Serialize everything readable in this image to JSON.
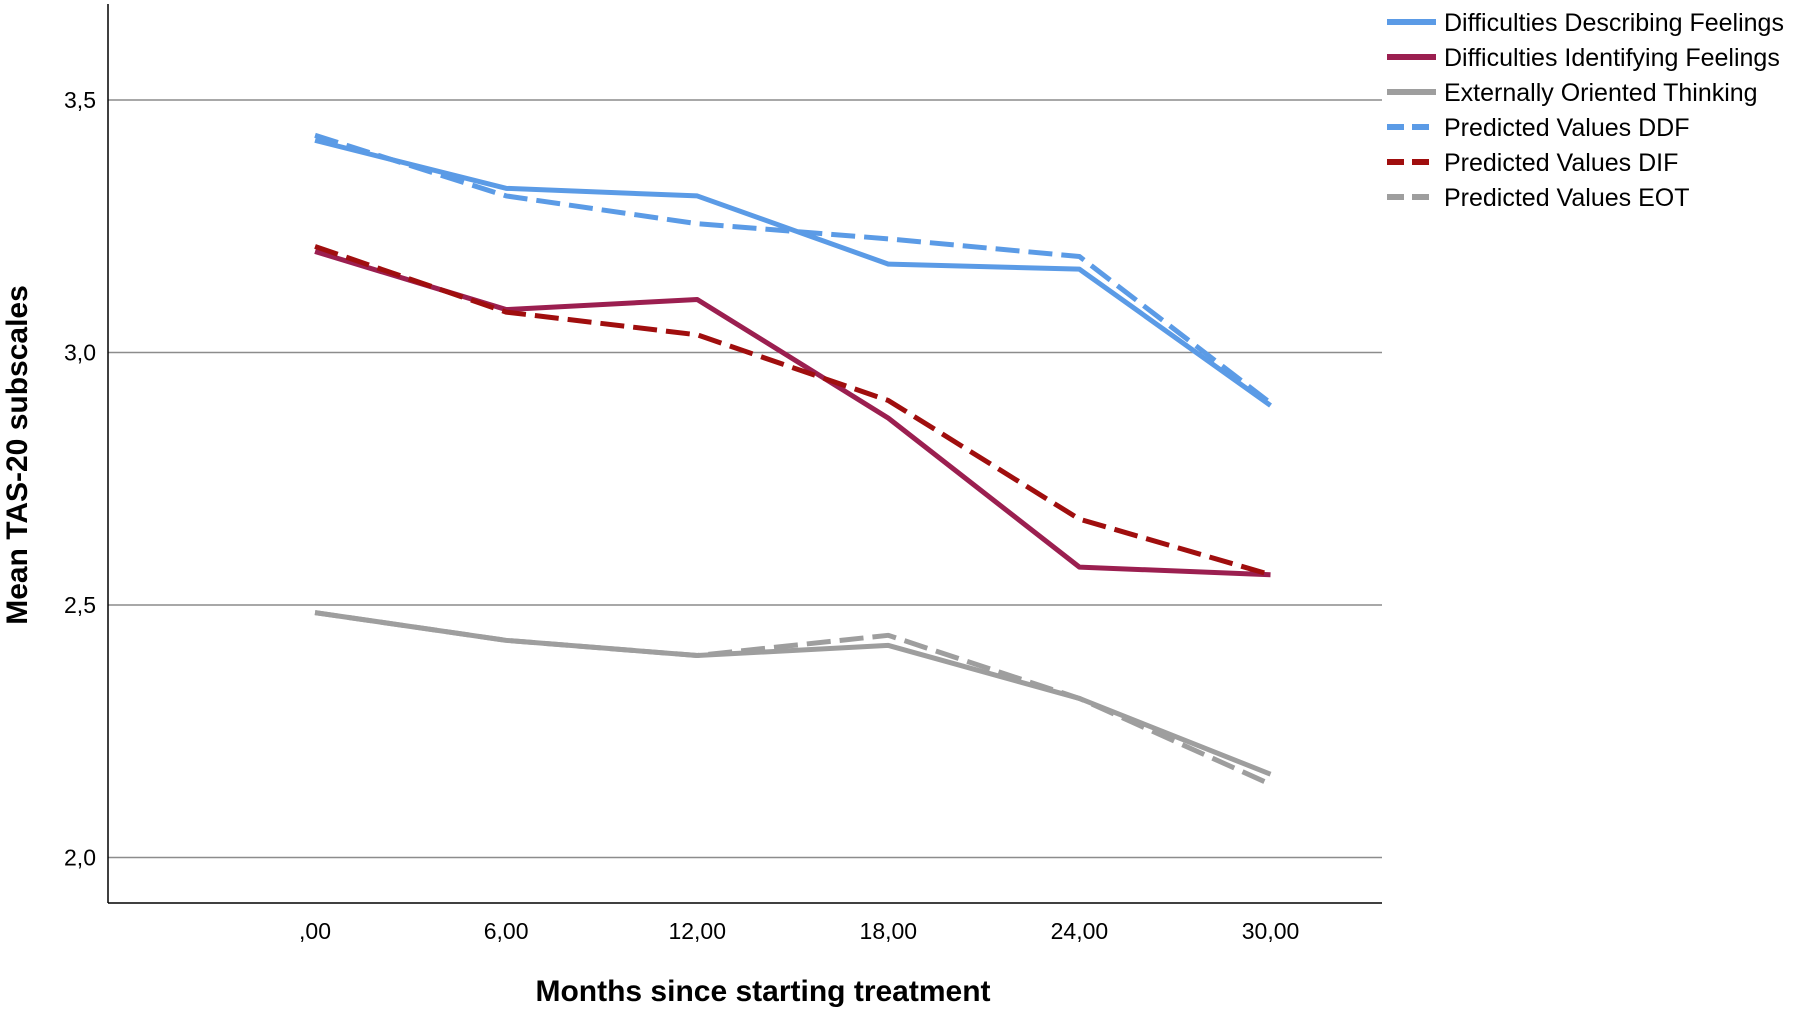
{
  "chart_data": {
    "type": "line",
    "title": "",
    "xlabel": "Months since starting treatment",
    "ylabel": "Mean TAS-20 subscales",
    "categories": [
      ",00",
      "6,00",
      "12,00",
      "18,00",
      "24,00",
      "30,00"
    ],
    "x": [
      0,
      6,
      12,
      18,
      24,
      30
    ],
    "xlim": [
      -6.5,
      33.5
    ],
    "ylim": [
      1.91,
      3.69
    ],
    "yticks": [
      2.0,
      2.5,
      3.0,
      3.5
    ],
    "ytick_labels": [
      "2,0",
      "2,5",
      "3,0",
      "3,5"
    ],
    "grid": "horizontal",
    "legend_position": "top-right",
    "series": [
      {
        "name": "Difficulties Describing Feelings",
        "color": "#5b9be6",
        "style": "solid",
        "values": [
          3.42,
          3.325,
          3.31,
          3.175,
          3.165,
          2.895
        ]
      },
      {
        "name": "Difficulties Identifying Feelings",
        "color": "#9b1f50",
        "style": "solid",
        "values": [
          3.2,
          3.085,
          3.105,
          2.87,
          2.575,
          2.56
        ]
      },
      {
        "name": "Externally Oriented Thinking",
        "color": "#9e9e9e",
        "style": "solid",
        "values": [
          2.485,
          2.43,
          2.4,
          2.42,
          2.315,
          2.165
        ]
      },
      {
        "name": "Predicted Values DDF",
        "color": "#5b9be6",
        "style": "dashed",
        "values": [
          3.43,
          3.31,
          3.255,
          3.225,
          3.19,
          2.9
        ]
      },
      {
        "name": "Predicted Values DIF",
        "color": "#a00e0e",
        "style": "dashed",
        "values": [
          3.21,
          3.08,
          3.035,
          2.905,
          2.67,
          2.56
        ]
      },
      {
        "name": "Predicted Values EOT",
        "color": "#9e9e9e",
        "style": "dashed",
        "values": [
          2.485,
          2.43,
          2.4,
          2.44,
          2.315,
          2.145
        ]
      }
    ]
  }
}
